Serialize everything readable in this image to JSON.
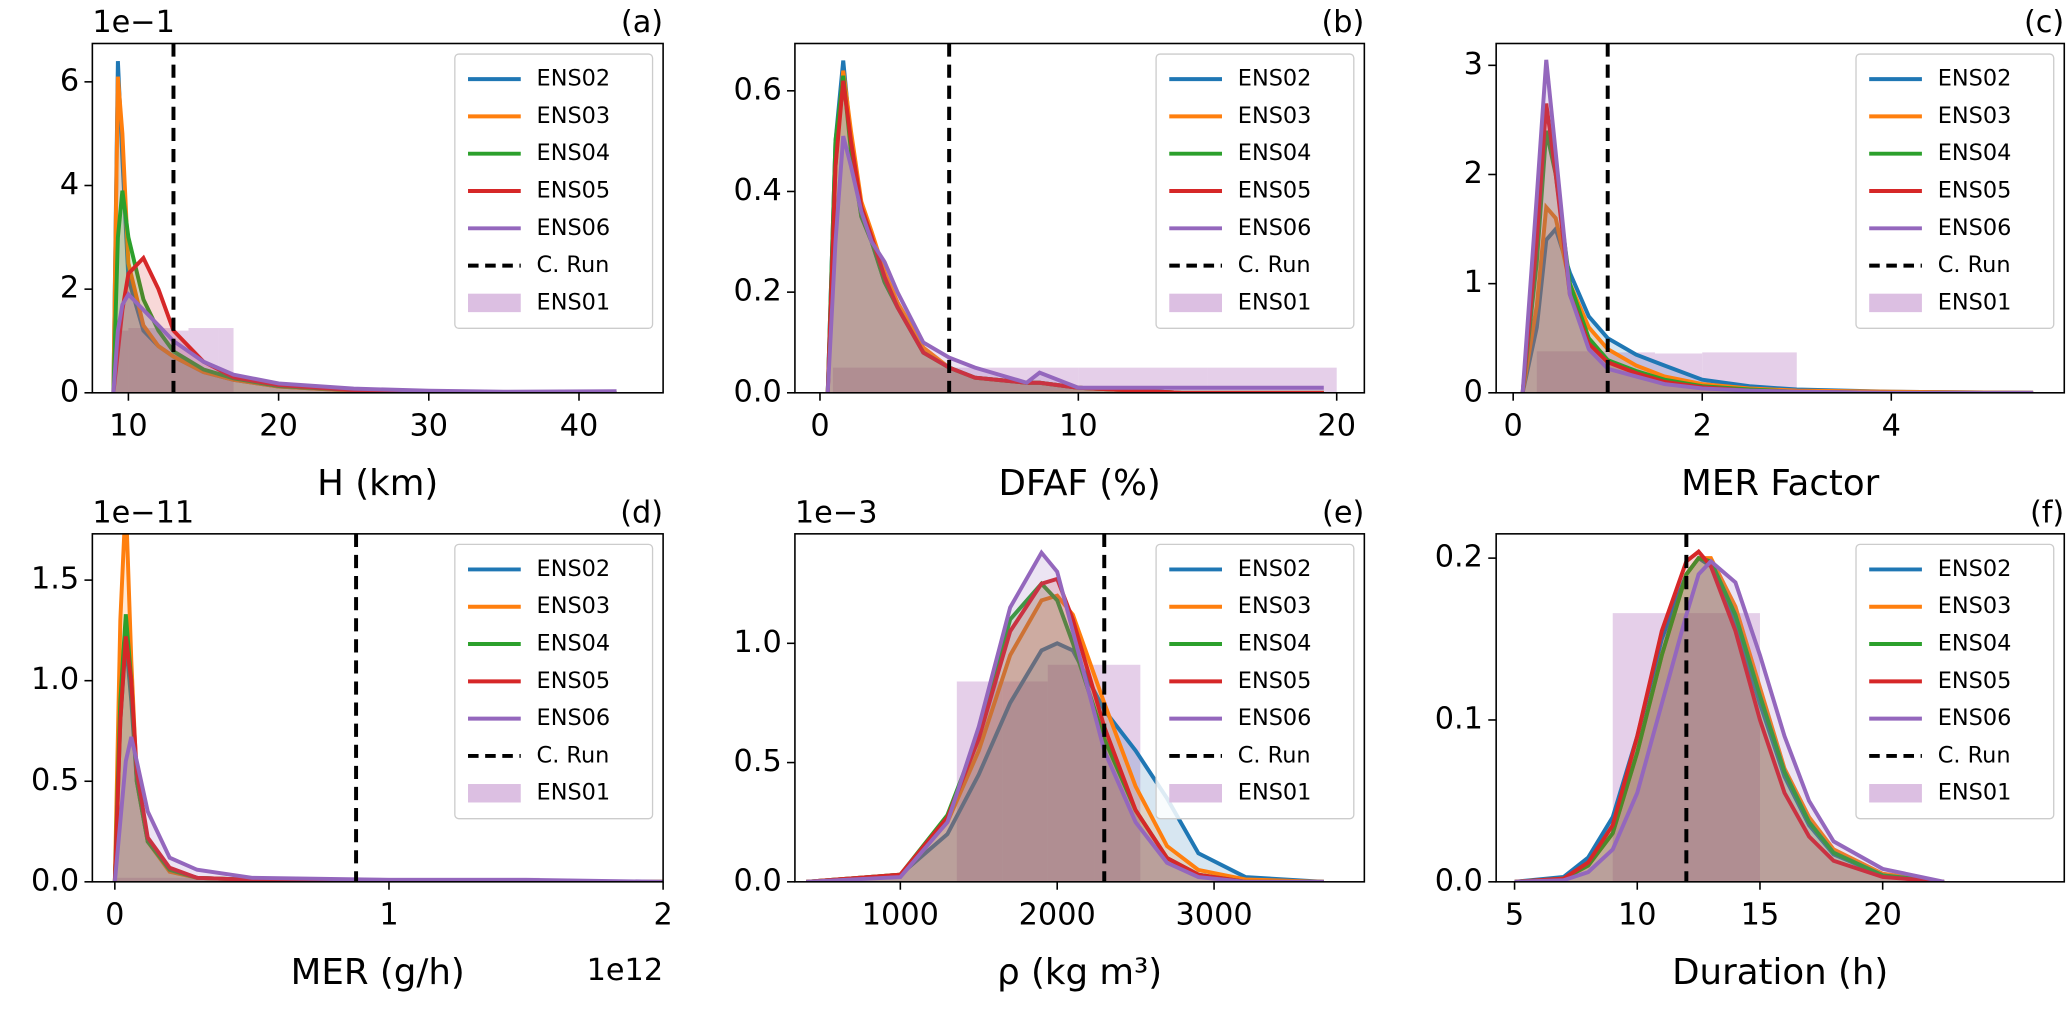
{
  "chart_data": [
    {
      "type": "density",
      "panel_label": "(a)",
      "xlabel": "H (km)",
      "y_offset_text": "1e−1",
      "xlim": [
        7.6,
        45.6
      ],
      "ylim": [
        0,
        6.74
      ],
      "xticks": [
        10,
        20,
        30,
        40
      ],
      "yticks": [
        0,
        2,
        4,
        6
      ],
      "legend": "upper right",
      "x": [
        9,
        9.3,
        9.6,
        10,
        11,
        12,
        13,
        15,
        17,
        20,
        25,
        30,
        35,
        42.5
      ],
      "series": [
        {
          "name": "ENS02",
          "color": "#1f77b4",
          "values": [
            0,
            6.4,
            4.5,
            2.2,
            1.2,
            0.9,
            0.7,
            0.4,
            0.25,
            0.12,
            0.04,
            0.02,
            0.01,
            0
          ]
        },
        {
          "name": "ENS03",
          "color": "#ff7f0e",
          "values": [
            0,
            6.1,
            5.0,
            2.5,
            1.3,
            0.9,
            0.7,
            0.4,
            0.25,
            0.12,
            0.04,
            0.02,
            0.01,
            0
          ]
        },
        {
          "name": "ENS04",
          "color": "#2ca02c",
          "values": [
            0,
            3.0,
            3.9,
            3.0,
            1.8,
            1.2,
            0.8,
            0.45,
            0.28,
            0.13,
            0.05,
            0.02,
            0.01,
            0
          ]
        },
        {
          "name": "ENS05",
          "color": "#d62728",
          "values": [
            0,
            0.8,
            1.6,
            2.3,
            2.6,
            2.0,
            1.2,
            0.6,
            0.3,
            0.15,
            0.05,
            0.02,
            0.01,
            0
          ]
        },
        {
          "name": "ENS06",
          "color": "#9467bd",
          "values": [
            0,
            1.2,
            1.7,
            1.9,
            1.6,
            1.3,
            1.0,
            0.6,
            0.35,
            0.18,
            0.08,
            0.04,
            0.02,
            0.03
          ]
        }
      ],
      "reference_line": {
        "name": "C. Run",
        "x": 13,
        "color": "#000000"
      },
      "histogram": {
        "name": "ENS01",
        "color": "#dcbfe2",
        "bins": [
          9,
          10,
          11,
          12,
          13,
          14,
          15,
          16,
          17
        ],
        "counts": [
          1.2,
          1.25,
          1.25,
          1.25,
          1.2,
          1.25,
          1.25,
          1.25
        ]
      }
    },
    {
      "type": "density",
      "panel_label": "(b)",
      "xlabel": "DFAF (%)",
      "xlim": [
        -0.97,
        21.07
      ],
      "ylim": [
        0,
        0.694
      ],
      "xticks": [
        0,
        10,
        20
      ],
      "yticks": [
        {
          "value": 0,
          "label": "0.0"
        },
        0.2,
        0.4,
        0.6
      ],
      "legend": "upper right",
      "x": [
        0.3,
        0.6,
        0.9,
        1.2,
        1.6,
        2,
        2.5,
        3,
        4,
        5,
        6,
        8,
        8.5,
        10,
        14,
        19.5
      ],
      "series": [
        {
          "name": "ENS02",
          "color": "#1f77b4",
          "values": [
            0,
            0.5,
            0.66,
            0.5,
            0.35,
            0.3,
            0.22,
            0.17,
            0.08,
            0.05,
            0.03,
            0.02,
            0.02,
            0.01,
            0,
            0
          ]
        },
        {
          "name": "ENS03",
          "color": "#ff7f0e",
          "values": [
            0,
            0.45,
            0.64,
            0.52,
            0.38,
            0.32,
            0.24,
            0.18,
            0.09,
            0.05,
            0.03,
            0.02,
            0.02,
            0.01,
            0,
            0
          ]
        },
        {
          "name": "ENS04",
          "color": "#2ca02c",
          "values": [
            0,
            0.5,
            0.63,
            0.48,
            0.35,
            0.3,
            0.22,
            0.17,
            0.08,
            0.05,
            0.03,
            0.02,
            0.02,
            0.01,
            0,
            0
          ]
        },
        {
          "name": "ENS05",
          "color": "#d62728",
          "values": [
            0,
            0.45,
            0.62,
            0.5,
            0.37,
            0.31,
            0.23,
            0.17,
            0.08,
            0.05,
            0.03,
            0.02,
            0.02,
            0.01,
            0,
            0
          ]
        },
        {
          "name": "ENS06",
          "color": "#9467bd",
          "values": [
            0,
            0.3,
            0.51,
            0.45,
            0.36,
            0.3,
            0.26,
            0.2,
            0.1,
            0.07,
            0.05,
            0.02,
            0.04,
            0.01,
            0.01,
            0.01
          ]
        }
      ],
      "reference_line": {
        "name": "C. Run",
        "x": 5,
        "color": "#000000"
      },
      "histogram": {
        "name": "ENS01",
        "color": "#dcbfe2",
        "bins": [
          0.5,
          5,
          10,
          15,
          20
        ],
        "counts": [
          0.05,
          0.05,
          0.05,
          0.05
        ]
      }
    },
    {
      "type": "density",
      "panel_label": "(c)",
      "xlabel": "MER Factor",
      "xlim": [
        -0.18,
        5.83
      ],
      "ylim": [
        0,
        3.2
      ],
      "xticks": [
        0,
        2,
        4
      ],
      "yticks": [
        0,
        1,
        2,
        3
      ],
      "legend": "upper right",
      "x": [
        0.1,
        0.25,
        0.35,
        0.45,
        0.6,
        0.8,
        1,
        1.3,
        1.6,
        2,
        2.5,
        3,
        4,
        5.5
      ],
      "series": [
        {
          "name": "ENS02",
          "color": "#1f77b4",
          "values": [
            0,
            0.6,
            1.4,
            1.5,
            1.1,
            0.7,
            0.5,
            0.35,
            0.25,
            0.12,
            0.06,
            0.03,
            0.01,
            0
          ]
        },
        {
          "name": "ENS03",
          "color": "#ff7f0e",
          "values": [
            0,
            0.8,
            1.7,
            1.6,
            1.0,
            0.6,
            0.4,
            0.25,
            0.15,
            0.08,
            0.04,
            0.02,
            0.01,
            0
          ]
        },
        {
          "name": "ENS04",
          "color": "#2ca02c",
          "values": [
            0,
            1.2,
            2.4,
            2.0,
            1.0,
            0.5,
            0.3,
            0.2,
            0.12,
            0.06,
            0.03,
            0.01,
            0,
            0
          ]
        },
        {
          "name": "ENS05",
          "color": "#d62728",
          "values": [
            0,
            1.4,
            2.65,
            2.0,
            0.9,
            0.45,
            0.28,
            0.18,
            0.1,
            0.05,
            0.02,
            0.01,
            0,
            0
          ]
        },
        {
          "name": "ENS06",
          "color": "#9467bd",
          "values": [
            0,
            1.8,
            3.05,
            2.2,
            0.9,
            0.4,
            0.22,
            0.15,
            0.08,
            0.04,
            0.02,
            0.01,
            0,
            0
          ]
        }
      ],
      "reference_line": {
        "name": "C. Run",
        "x": 1,
        "color": "#000000"
      },
      "histogram": {
        "name": "ENS01",
        "color": "#dcbfe2",
        "bins": [
          0.25,
          1,
          1.5,
          2,
          2.5,
          3
        ],
        "counts": [
          0.38,
          0.37,
          0.36,
          0.37,
          0.37
        ]
      }
    },
    {
      "type": "density",
      "panel_label": "(d)",
      "xlabel": "MER (g/h)",
      "y_offset_text": "1e−11",
      "x_offset_text": "1e12",
      "xlim": [
        -0.082,
        2
      ],
      "ylim": [
        0,
        1.73
      ],
      "xticks": [
        0,
        1,
        2
      ],
      "yticks": [
        {
          "value": 0,
          "label": "0.0"
        },
        0.5,
        {
          "value": 1,
          "label": "1.0"
        },
        1.5
      ],
      "legend": "upper right",
      "x": [
        0,
        0.02,
        0.04,
        0.06,
        0.08,
        0.12,
        0.2,
        0.3,
        0.5,
        1.0,
        1.5,
        2.0
      ],
      "series": [
        {
          "name": "ENS02",
          "color": "#1f77b4",
          "values": [
            0,
            0.8,
            1.2,
            0.9,
            0.5,
            0.2,
            0.06,
            0.02,
            0.01,
            0,
            0,
            0
          ]
        },
        {
          "name": "ENS03",
          "color": "#ff7f0e",
          "values": [
            0,
            1.3,
            1.9,
            1.1,
            0.5,
            0.2,
            0.05,
            0.02,
            0.01,
            0,
            0,
            0
          ]
        },
        {
          "name": "ENS04",
          "color": "#2ca02c",
          "values": [
            0,
            0.9,
            1.33,
            1.0,
            0.5,
            0.2,
            0.06,
            0.02,
            0.01,
            0,
            0,
            0
          ]
        },
        {
          "name": "ENS05",
          "color": "#d62728",
          "values": [
            0,
            0.8,
            1.22,
            1.0,
            0.55,
            0.22,
            0.07,
            0.02,
            0.01,
            0,
            0,
            0
          ]
        },
        {
          "name": "ENS06",
          "color": "#9467bd",
          "values": [
            0,
            0.3,
            0.6,
            0.72,
            0.6,
            0.35,
            0.12,
            0.06,
            0.02,
            0.01,
            0.01,
            0
          ]
        }
      ],
      "reference_line": {
        "name": "C. Run",
        "x": 0.88,
        "color": "#000000"
      },
      "histogram": {
        "name": "ENS01",
        "color": "#dcbfe2",
        "bins": [
          0,
          0.5,
          1.0,
          1.55
        ],
        "counts": [
          0.02,
          0.02,
          0.02
        ]
      }
    },
    {
      "type": "density",
      "panel_label": "(e)",
      "xlabel": "ρ (kg m³)",
      "y_offset_text": "1e−3",
      "xlim": [
        328,
        3958
      ],
      "ylim": [
        0,
        1.459
      ],
      "xticks": [
        1000,
        2000,
        3000
      ],
      "yticks": [
        {
          "value": 0,
          "label": "0.0"
        },
        0.5,
        {
          "value": 1,
          "label": "1.0"
        }
      ],
      "legend": "upper right",
      "x": [
        400,
        1000,
        1300,
        1500,
        1700,
        1900,
        2000,
        2100,
        2300,
        2500,
        2700,
        2900,
        3200,
        3700
      ],
      "series": [
        {
          "name": "ENS02",
          "color": "#1f77b4",
          "values": [
            0,
            0.03,
            0.2,
            0.45,
            0.75,
            0.97,
            1.0,
            0.97,
            0.72,
            0.55,
            0.35,
            0.12,
            0.02,
            0
          ]
        },
        {
          "name": "ENS03",
          "color": "#ff7f0e",
          "values": [
            0,
            0.03,
            0.25,
            0.55,
            0.95,
            1.18,
            1.2,
            1.12,
            0.75,
            0.4,
            0.15,
            0.05,
            0.01,
            0
          ]
        },
        {
          "name": "ENS04",
          "color": "#2ca02c",
          "values": [
            0,
            0.03,
            0.28,
            0.62,
            1.1,
            1.25,
            1.18,
            1.0,
            0.6,
            0.3,
            0.1,
            0.03,
            0,
            0
          ]
        },
        {
          "name": "ENS05",
          "color": "#d62728",
          "values": [
            0,
            0.03,
            0.27,
            0.6,
            1.05,
            1.25,
            1.27,
            1.1,
            0.65,
            0.3,
            0.1,
            0.03,
            0,
            0
          ]
        },
        {
          "name": "ENS06",
          "color": "#9467bd",
          "values": [
            0,
            0.02,
            0.25,
            0.65,
            1.15,
            1.38,
            1.3,
            1.05,
            0.55,
            0.25,
            0.08,
            0.02,
            0,
            0
          ]
        }
      ],
      "reference_line": {
        "name": "C. Run",
        "x": 2300,
        "color": "#000000"
      },
      "histogram": {
        "name": "ENS01",
        "color": "#dcbfe2",
        "bins": [
          1360,
          1650,
          1940,
          2240,
          2530
        ],
        "counts": [
          0.84,
          0.84,
          0.91,
          0.91
        ]
      }
    },
    {
      "type": "density",
      "panel_label": "(f)",
      "xlabel": "Duration (h)",
      "xlim": [
        4.25,
        27.4
      ],
      "ylim": [
        0,
        0.215
      ],
      "xticks": [
        5,
        10,
        15,
        20
      ],
      "yticks": [
        {
          "value": 0,
          "label": "0.0"
        },
        0.1,
        0.2
      ],
      "legend": "upper right",
      "x": [
        5,
        7,
        8,
        9,
        10,
        11,
        12,
        12.5,
        13,
        14,
        15,
        16,
        17,
        18,
        20,
        22.5
      ],
      "series": [
        {
          "name": "ENS02",
          "color": "#1f77b4",
          "values": [
            0,
            0.003,
            0.015,
            0.04,
            0.09,
            0.15,
            0.19,
            0.2,
            0.195,
            0.16,
            0.11,
            0.065,
            0.035,
            0.017,
            0.004,
            0
          ]
        },
        {
          "name": "ENS03",
          "color": "#ff7f0e",
          "values": [
            0,
            0.002,
            0.01,
            0.03,
            0.08,
            0.14,
            0.19,
            0.2,
            0.2,
            0.17,
            0.12,
            0.07,
            0.04,
            0.02,
            0.005,
            0
          ]
        },
        {
          "name": "ENS04",
          "color": "#2ca02c",
          "values": [
            0,
            0.002,
            0.01,
            0.03,
            0.08,
            0.14,
            0.19,
            0.2,
            0.198,
            0.165,
            0.115,
            0.068,
            0.037,
            0.018,
            0.004,
            0
          ]
        },
        {
          "name": "ENS05",
          "color": "#d62728",
          "values": [
            0,
            0.002,
            0.012,
            0.035,
            0.09,
            0.155,
            0.198,
            0.204,
            0.195,
            0.155,
            0.1,
            0.055,
            0.028,
            0.013,
            0.003,
            0
          ]
        },
        {
          "name": "ENS06",
          "color": "#9467bd",
          "values": [
            0,
            0.001,
            0.006,
            0.02,
            0.055,
            0.11,
            0.165,
            0.19,
            0.198,
            0.185,
            0.14,
            0.09,
            0.05,
            0.025,
            0.008,
            0
          ]
        }
      ],
      "reference_line": {
        "name": "C. Run",
        "x": 12,
        "color": "#000000"
      },
      "histogram": {
        "name": "ENS01",
        "color": "#dcbfe2",
        "bins": [
          9,
          12,
          15
        ],
        "counts": [
          0.166,
          0.166
        ]
      }
    }
  ]
}
